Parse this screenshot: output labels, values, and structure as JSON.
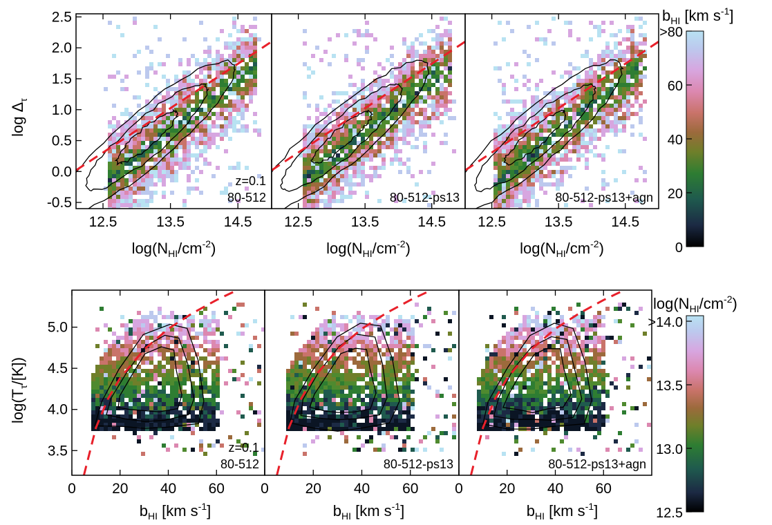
{
  "figure": {
    "top_row": {
      "ylabel": "log Δ",
      "ylabel_sub": "τ",
      "xlabel_pre": "log(N",
      "xlabel_sub": "HI",
      "xlabel_post": "/cm",
      "xlabel_sup": "-2",
      "xlabel_end": ")"
    },
    "bottom_row": {
      "ylabel_pre": "log(T",
      "ylabel_sub": "τ",
      "ylabel_post": "/[K])",
      "xlabel_pre": "b",
      "xlabel_sub": "HI",
      "xlabel_post": " [km s",
      "xlabel_sup": "-1",
      "xlabel_end": "]"
    },
    "colorbar_top": {
      "label_pre": "b",
      "label_sub": "HI",
      "label_post": " [km s",
      "label_sup": "-1",
      "label_end": "]",
      "ticks": [
        ">80",
        "60",
        "40",
        "20",
        "0"
      ],
      "range": [
        0,
        80
      ]
    },
    "colorbar_bottom": {
      "label_pre": "log(N",
      "label_sub": "HI",
      "label_post": "/cm",
      "label_sup": "-2",
      "label_end": ")",
      "ticks": [
        ">14.0",
        "13.5",
        "13.0",
        "12.5"
      ],
      "range": [
        12.5,
        14.0
      ]
    },
    "colors": {
      "fit_line": "#e8202a",
      "contour": "#000000"
    }
  },
  "chart_data": [
    {
      "type": "heatmap",
      "panel": "top-1",
      "annotations": [
        "z=0.1",
        "80-512"
      ],
      "xlim": [
        12.1,
        15.0
      ],
      "ylim": [
        -0.6,
        2.55
      ],
      "xticks": [
        "12.5",
        "13.5",
        "14.5"
      ],
      "yticks": [
        "2.5",
        "2.0",
        "1.5",
        "1.0",
        "0.5",
        "0.0",
        "-0.5"
      ],
      "fit_line": {
        "x": [
          12.1,
          15.0
        ],
        "y": [
          0.02,
          2.1
        ]
      },
      "color_by": "b_HI"
    },
    {
      "type": "heatmap",
      "panel": "top-2",
      "annotations": [
        "80-512-ps13"
      ],
      "xlim": [
        12.1,
        15.0
      ],
      "ylim": [
        -0.6,
        2.55
      ],
      "xticks": [
        "12.5",
        "13.5",
        "14.5"
      ],
      "fit_line": {
        "x": [
          12.1,
          15.0
        ],
        "y": [
          0.02,
          2.1
        ]
      },
      "color_by": "b_HI"
    },
    {
      "type": "heatmap",
      "panel": "top-3",
      "annotations": [
        "80-512-ps13+agn"
      ],
      "xlim": [
        12.1,
        15.0
      ],
      "ylim": [
        -0.6,
        2.55
      ],
      "xticks": [
        "12.5",
        "13.5",
        "14.5"
      ],
      "fit_line": {
        "x": [
          12.1,
          15.0
        ],
        "y": [
          0.02,
          2.1
        ]
      },
      "color_by": "b_HI"
    },
    {
      "type": "heatmap",
      "panel": "bottom-1",
      "annotations": [
        "z=0.1",
        "80-512"
      ],
      "xlim": [
        0,
        80
      ],
      "ylim": [
        3.2,
        5.45
      ],
      "xticks": [
        "0",
        "20",
        "40",
        "60"
      ],
      "yticks": [
        "5.0",
        "4.5",
        "4.0",
        "3.5"
      ],
      "fit_curve": {
        "x": [
          5,
          10,
          15,
          20,
          30,
          40,
          50,
          60,
          70
        ],
        "y": [
          3.2,
          3.78,
          4.13,
          4.38,
          4.73,
          4.98,
          5.17,
          5.33,
          5.47
        ]
      },
      "color_by": "log N_HI"
    },
    {
      "type": "heatmap",
      "panel": "bottom-2",
      "annotations": [
        "80-512-ps13"
      ],
      "xlim": [
        0,
        80
      ],
      "ylim": [
        3.2,
        5.45
      ],
      "xticks": [
        "0",
        "20",
        "40",
        "60"
      ],
      "fit_curve": {
        "x": [
          5,
          10,
          15,
          20,
          30,
          40,
          50,
          60,
          70
        ],
        "y": [
          3.2,
          3.78,
          4.13,
          4.38,
          4.73,
          4.98,
          5.17,
          5.33,
          5.47
        ]
      },
      "color_by": "log N_HI"
    },
    {
      "type": "heatmap",
      "panel": "bottom-3",
      "annotations": [
        "80-512-ps13+agn"
      ],
      "xlim": [
        0,
        80
      ],
      "ylim": [
        3.2,
        5.45
      ],
      "xticks": [
        "0",
        "20",
        "40",
        "60"
      ],
      "fit_curve": {
        "x": [
          5,
          10,
          15,
          20,
          30,
          40,
          50,
          60,
          70
        ],
        "y": [
          3.2,
          3.78,
          4.13,
          4.38,
          4.73,
          4.98,
          5.17,
          5.33,
          5.47
        ]
      },
      "color_by": "log N_HI"
    }
  ]
}
